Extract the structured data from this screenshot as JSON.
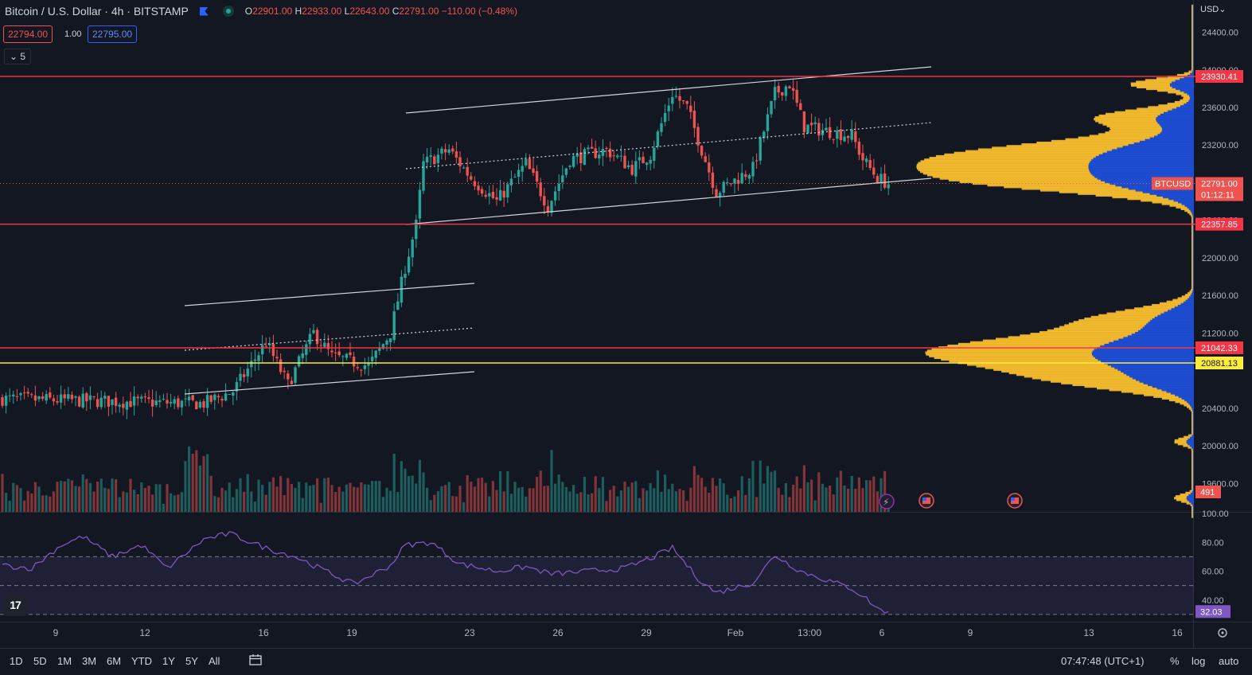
{
  "header": {
    "title": "Bitcoin / U.S. Dollar · 4h · BITSTAMP",
    "open_label": "O",
    "open": "22901.00",
    "high_label": "H",
    "high": "22933.00",
    "low_label": "L",
    "low": "22643.00",
    "close_label": "C",
    "close": "22791.00",
    "change": "−110.00 (−0.48%)",
    "sell_price": "22794.00",
    "spread": "1.00",
    "buy_price": "22795.00",
    "indicator_toggle": "⌄ 5"
  },
  "currency_button": "USD⌄",
  "colors": {
    "background": "#131722",
    "up": "#26a69a",
    "down": "#ef5350",
    "line_red": "#f23645",
    "line_yellow": "#ffeb3b",
    "vp_up": "#fbc02d",
    "vp_down": "#1e4fd8",
    "rsi": "#7e57c2"
  },
  "chart_data": [
    {
      "type": "candlestick",
      "symbol": "BTCUSD",
      "interval": "4h",
      "x_tick_labels": [
        "9",
        "12",
        "16",
        "19",
        "23",
        "26",
        "29",
        "Feb",
        "13:00",
        "6",
        "9",
        "13",
        "16"
      ],
      "y_tick_labels": [
        "24400.00",
        "24000.00",
        "23600.00",
        "23200.00",
        "22400.00",
        "22000.00",
        "21600.00",
        "21200.00",
        "20400.00",
        "20000.00",
        "19600.00"
      ],
      "ylim": [
        19300,
        24800
      ],
      "horizontal_levels": [
        {
          "value": 23930.41,
          "label": "23930.41",
          "color": "#f23645"
        },
        {
          "value": 22357.85,
          "label": "22357.85",
          "color": "#f23645"
        },
        {
          "value": 21042.33,
          "label": "21042.33",
          "color": "#f23645"
        },
        {
          "value": 20881.13,
          "label": "20881.13",
          "color": "#ffeb3b"
        }
      ],
      "last_price": {
        "symbol": "BTCUSD",
        "value": 22791.0,
        "label": "22791.00",
        "countdown": "01:12:11"
      },
      "volume_label": "491",
      "anchors": [
        {
          "bar": 0,
          "price": 20500
        },
        {
          "bar": 55,
          "price": 20450
        },
        {
          "bar": 63,
          "price": 20580
        },
        {
          "bar": 72,
          "price": 21100
        },
        {
          "bar": 78,
          "price": 20650
        },
        {
          "bar": 85,
          "price": 21200
        },
        {
          "bar": 90,
          "price": 20950
        },
        {
          "bar": 100,
          "price": 20850
        },
        {
          "bar": 106,
          "price": 21200
        },
        {
          "bar": 110,
          "price": 21900
        },
        {
          "bar": 113,
          "price": 22350
        },
        {
          "bar": 115,
          "price": 23000
        },
        {
          "bar": 122,
          "price": 23150
        },
        {
          "bar": 128,
          "price": 22850
        },
        {
          "bar": 135,
          "price": 22600
        },
        {
          "bar": 143,
          "price": 23000
        },
        {
          "bar": 149,
          "price": 22550
        },
        {
          "bar": 155,
          "price": 23050
        },
        {
          "bar": 165,
          "price": 23150
        },
        {
          "bar": 172,
          "price": 22950
        },
        {
          "bar": 177,
          "price": 23100
        },
        {
          "bar": 183,
          "price": 23750
        },
        {
          "bar": 187,
          "price": 23600
        },
        {
          "bar": 195,
          "price": 22700
        },
        {
          "bar": 205,
          "price": 22950
        },
        {
          "bar": 211,
          "price": 23750
        },
        {
          "bar": 215,
          "price": 23850
        },
        {
          "bar": 219,
          "price": 23400
        },
        {
          "bar": 225,
          "price": 23350
        },
        {
          "bar": 232,
          "price": 23300
        },
        {
          "bar": 235,
          "price": 23050
        },
        {
          "bar": 239,
          "price": 22850
        },
        {
          "bar": 242,
          "price": 22790
        }
      ]
    },
    {
      "type": "line",
      "name": "RSI",
      "ylim": [
        25,
        100
      ],
      "y_tick_labels": [
        "100.00",
        "80.00",
        "60.00",
        "40.00"
      ],
      "bands": [
        70,
        50,
        30
      ],
      "last_value": "32.03",
      "anchors": [
        {
          "bar": 0,
          "value": 64
        },
        {
          "bar": 8,
          "value": 62
        },
        {
          "bar": 16,
          "value": 78
        },
        {
          "bar": 22,
          "value": 84
        },
        {
          "bar": 30,
          "value": 70
        },
        {
          "bar": 38,
          "value": 78
        },
        {
          "bar": 45,
          "value": 62
        },
        {
          "bar": 55,
          "value": 82
        },
        {
          "bar": 62,
          "value": 86
        },
        {
          "bar": 72,
          "value": 76
        },
        {
          "bar": 80,
          "value": 70
        },
        {
          "bar": 90,
          "value": 58
        },
        {
          "bar": 96,
          "value": 51
        },
        {
          "bar": 106,
          "value": 64
        },
        {
          "bar": 110,
          "value": 78
        },
        {
          "bar": 117,
          "value": 80
        },
        {
          "bar": 125,
          "value": 65
        },
        {
          "bar": 135,
          "value": 60
        },
        {
          "bar": 143,
          "value": 63
        },
        {
          "bar": 150,
          "value": 58
        },
        {
          "bar": 160,
          "value": 60
        },
        {
          "bar": 170,
          "value": 62
        },
        {
          "bar": 178,
          "value": 70
        },
        {
          "bar": 183,
          "value": 76
        },
        {
          "bar": 190,
          "value": 55
        },
        {
          "bar": 195,
          "value": 45
        },
        {
          "bar": 205,
          "value": 52
        },
        {
          "bar": 211,
          "value": 71
        },
        {
          "bar": 218,
          "value": 60
        },
        {
          "bar": 225,
          "value": 54
        },
        {
          "bar": 232,
          "value": 48
        },
        {
          "bar": 236,
          "value": 41
        },
        {
          "bar": 239,
          "value": 34
        },
        {
          "bar": 242,
          "value": 32
        }
      ]
    }
  ],
  "bottom_bar": {
    "ranges": [
      "1D",
      "5D",
      "1M",
      "3M",
      "6M",
      "YTD",
      "1Y",
      "5Y",
      "All"
    ],
    "clock": "07:47:48 (UTC+1)",
    "options": [
      "%",
      "log",
      "auto"
    ]
  },
  "logo_text": "17"
}
